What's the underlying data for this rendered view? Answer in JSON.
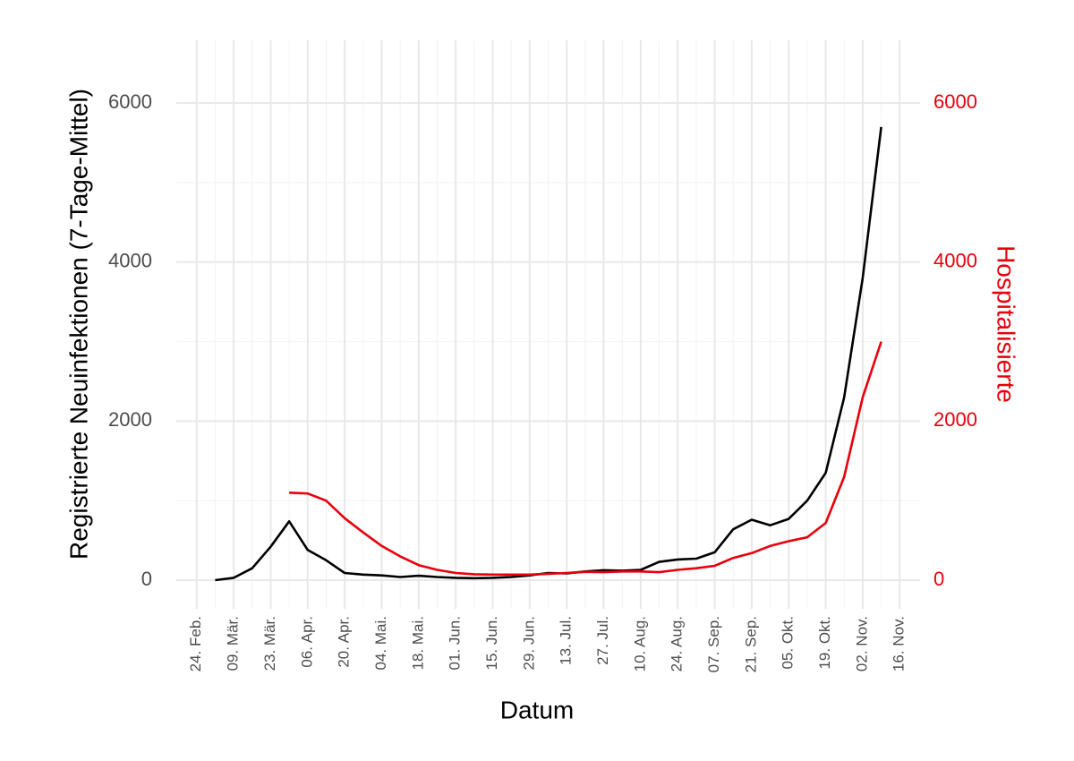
{
  "chart_data": {
    "type": "line",
    "xlabel": "Datum",
    "ylabel": "Registrierte Neuinfektionen (7-Tage-Mittel)",
    "y2label": "Hospitalisierte",
    "categories": [
      "24. Feb.",
      null,
      "09. Mär.",
      null,
      "23. Mär.",
      null,
      "06. Apr.",
      null,
      "20. Apr.",
      null,
      "04. Mai.",
      null,
      "18. Mai.",
      null,
      "01. Jun.",
      null,
      "15. Jun.",
      null,
      "29. Jun.",
      null,
      "13. Jul.",
      null,
      "27. Jul.",
      null,
      "10. Aug.",
      null,
      "24. Aug.",
      null,
      "07. Sep.",
      null,
      "21. Sep.",
      null,
      "05. Okt.",
      null,
      "19. Okt.",
      null,
      "02. Nov.",
      null,
      "16. Nov."
    ],
    "series": [
      {
        "color": "#000000",
        "values": [
          null,
          0,
          30,
          150,
          420,
          740,
          380,
          250,
          90,
          70,
          60,
          40,
          55,
          40,
          30,
          25,
          30,
          40,
          60,
          90,
          85,
          110,
          125,
          120,
          130,
          230,
          260,
          270,
          350,
          640,
          760,
          690,
          770,
          1000,
          1350,
          2300,
          3800,
          5700,
          null
        ]
      },
      {
        "color": "#e8000b",
        "axis": "y2",
        "values": [
          null,
          null,
          null,
          null,
          null,
          1100,
          1090,
          1000,
          780,
          600,
          430,
          300,
          190,
          130,
          90,
          75,
          70,
          70,
          70,
          80,
          90,
          105,
          100,
          110,
          110,
          100,
          130,
          150,
          180,
          280,
          340,
          430,
          490,
          540,
          720,
          1300,
          2300,
          3000,
          null
        ]
      }
    ],
    "ylim": [
      -360,
      6790
    ],
    "yticks": [
      0,
      2000,
      4000,
      6000
    ],
    "y2lim": [
      -360,
      6790
    ],
    "y2ticks": [
      0,
      2000,
      4000,
      6000
    ],
    "y2color": "#e8000b",
    "grid": true
  }
}
